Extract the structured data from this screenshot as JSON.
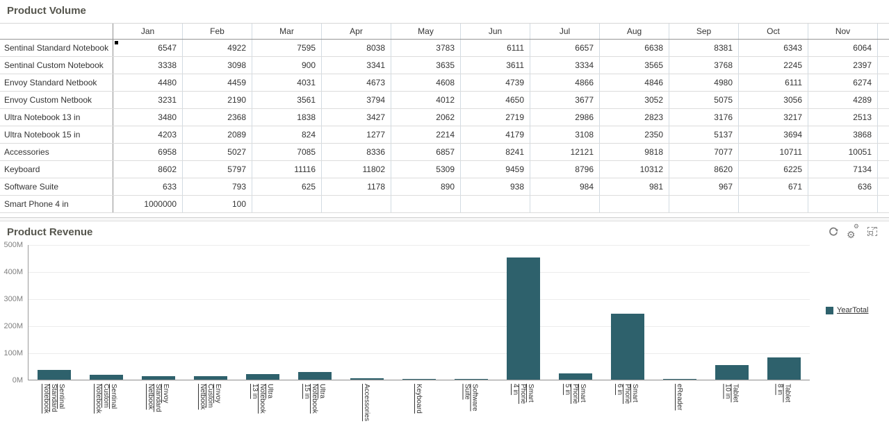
{
  "volume": {
    "title": "Product Volume",
    "columns": [
      "Jan",
      "Feb",
      "Mar",
      "Apr",
      "May",
      "Jun",
      "Jul",
      "Aug",
      "Sep",
      "Oct",
      "Nov"
    ],
    "rows": [
      {
        "label": "Sentinal Standard Notebook",
        "values": [
          "6547",
          "4922",
          "7595",
          "8038",
          "3783",
          "6111",
          "6657",
          "6638",
          "8381",
          "6343",
          "6064"
        ]
      },
      {
        "label": "Sentinal Custom Notebook",
        "values": [
          "3338",
          "3098",
          "900",
          "3341",
          "3635",
          "3611",
          "3334",
          "3565",
          "3768",
          "2245",
          "2397"
        ]
      },
      {
        "label": "Envoy Standard Netbook",
        "values": [
          "4480",
          "4459",
          "4031",
          "4673",
          "4608",
          "4739",
          "4866",
          "4846",
          "4980",
          "6111",
          "6274"
        ]
      },
      {
        "label": "Envoy Custom Netbook",
        "values": [
          "3231",
          "2190",
          "3561",
          "3794",
          "4012",
          "4650",
          "3677",
          "3052",
          "5075",
          "3056",
          "4289"
        ]
      },
      {
        "label": "Ultra Notebook 13 in",
        "values": [
          "3480",
          "2368",
          "1838",
          "3427",
          "2062",
          "2719",
          "2986",
          "2823",
          "3176",
          "3217",
          "2513"
        ]
      },
      {
        "label": "Ultra Notebook 15 in",
        "values": [
          "4203",
          "2089",
          "824",
          "1277",
          "2214",
          "4179",
          "3108",
          "2350",
          "5137",
          "3694",
          "3868"
        ]
      },
      {
        "label": "Accessories",
        "values": [
          "6958",
          "5027",
          "7085",
          "8336",
          "6857",
          "8241",
          "12121",
          "9818",
          "7077",
          "10711",
          "10051"
        ]
      },
      {
        "label": "Keyboard",
        "values": [
          "8602",
          "5797",
          "11116",
          "11802",
          "5309",
          "9459",
          "8796",
          "10312",
          "8620",
          "6225",
          "7134"
        ]
      },
      {
        "label": "Software Suite",
        "values": [
          "633",
          "793",
          "625",
          "1178",
          "890",
          "938",
          "984",
          "981",
          "967",
          "671",
          "636"
        ]
      },
      {
        "label": "Smart Phone 4 in",
        "values": [
          "1000000",
          "100",
          "",
          "",
          "",
          "",
          "",
          "",
          "",
          "",
          ""
        ]
      }
    ]
  },
  "revenue": {
    "title": "Product Revenue",
    "toolbar_icons": [
      "refresh-icon",
      "settings-gears-icon",
      "maximize-icon"
    ],
    "legend": {
      "label": "YearTotal",
      "color": "#2E616C"
    }
  },
  "chart_data": {
    "type": "bar",
    "title": "Product Revenue",
    "categories": [
      "Sentinal Standard Notebook",
      "Sentinal Custom Notebook",
      "Envoy Standard Netbook",
      "Envoy Custom Netbook",
      "Ultra Notebook 13 in",
      "Ultra Notebook 15 in",
      "Accessories",
      "Keyboard",
      "Software Suite",
      "Smart Phone 4 in",
      "Smart Phone 5 in",
      "Smart Phone 6 in",
      "eReader",
      "Tablet 10 in",
      "Tablet 8 in"
    ],
    "label_lines": [
      [
        "Sentinal",
        "Standard",
        "Notebook"
      ],
      [
        "Sentinal",
        "Custom",
        "Notebook"
      ],
      [
        "Envoy",
        "Standard",
        "Netbook"
      ],
      [
        "Envoy",
        "Custom",
        "Netbook"
      ],
      [
        "Ultra",
        "Notebook",
        "13 in"
      ],
      [
        "Ultra",
        "Notebook",
        "15 in"
      ],
      [
        "Accessories"
      ],
      [
        "Keyboard"
      ],
      [
        "Software",
        "Suite"
      ],
      [
        "Smart",
        "Phone",
        "4 in"
      ],
      [
        "Smart",
        "Phone",
        "5 in"
      ],
      [
        "Smart",
        "Phone",
        "6 in"
      ],
      [
        "eReader"
      ],
      [
        "Tablet",
        "10 in"
      ],
      [
        "Tablet",
        "8 in"
      ]
    ],
    "series": [
      {
        "name": "YearTotal",
        "values_m": [
          36,
          19,
          14,
          14,
          21,
          27,
          6,
          3,
          3,
          452,
          22,
          244,
          1,
          54,
          81
        ]
      }
    ],
    "unit": "M",
    "y_ticks_m": [
      0,
      100,
      200,
      300,
      400,
      500
    ],
    "ylim_m": [
      0,
      500
    ],
    "bar_color": "#2E616C",
    "grid": true,
    "legend_position": "right",
    "xlabel": "",
    "ylabel": ""
  }
}
